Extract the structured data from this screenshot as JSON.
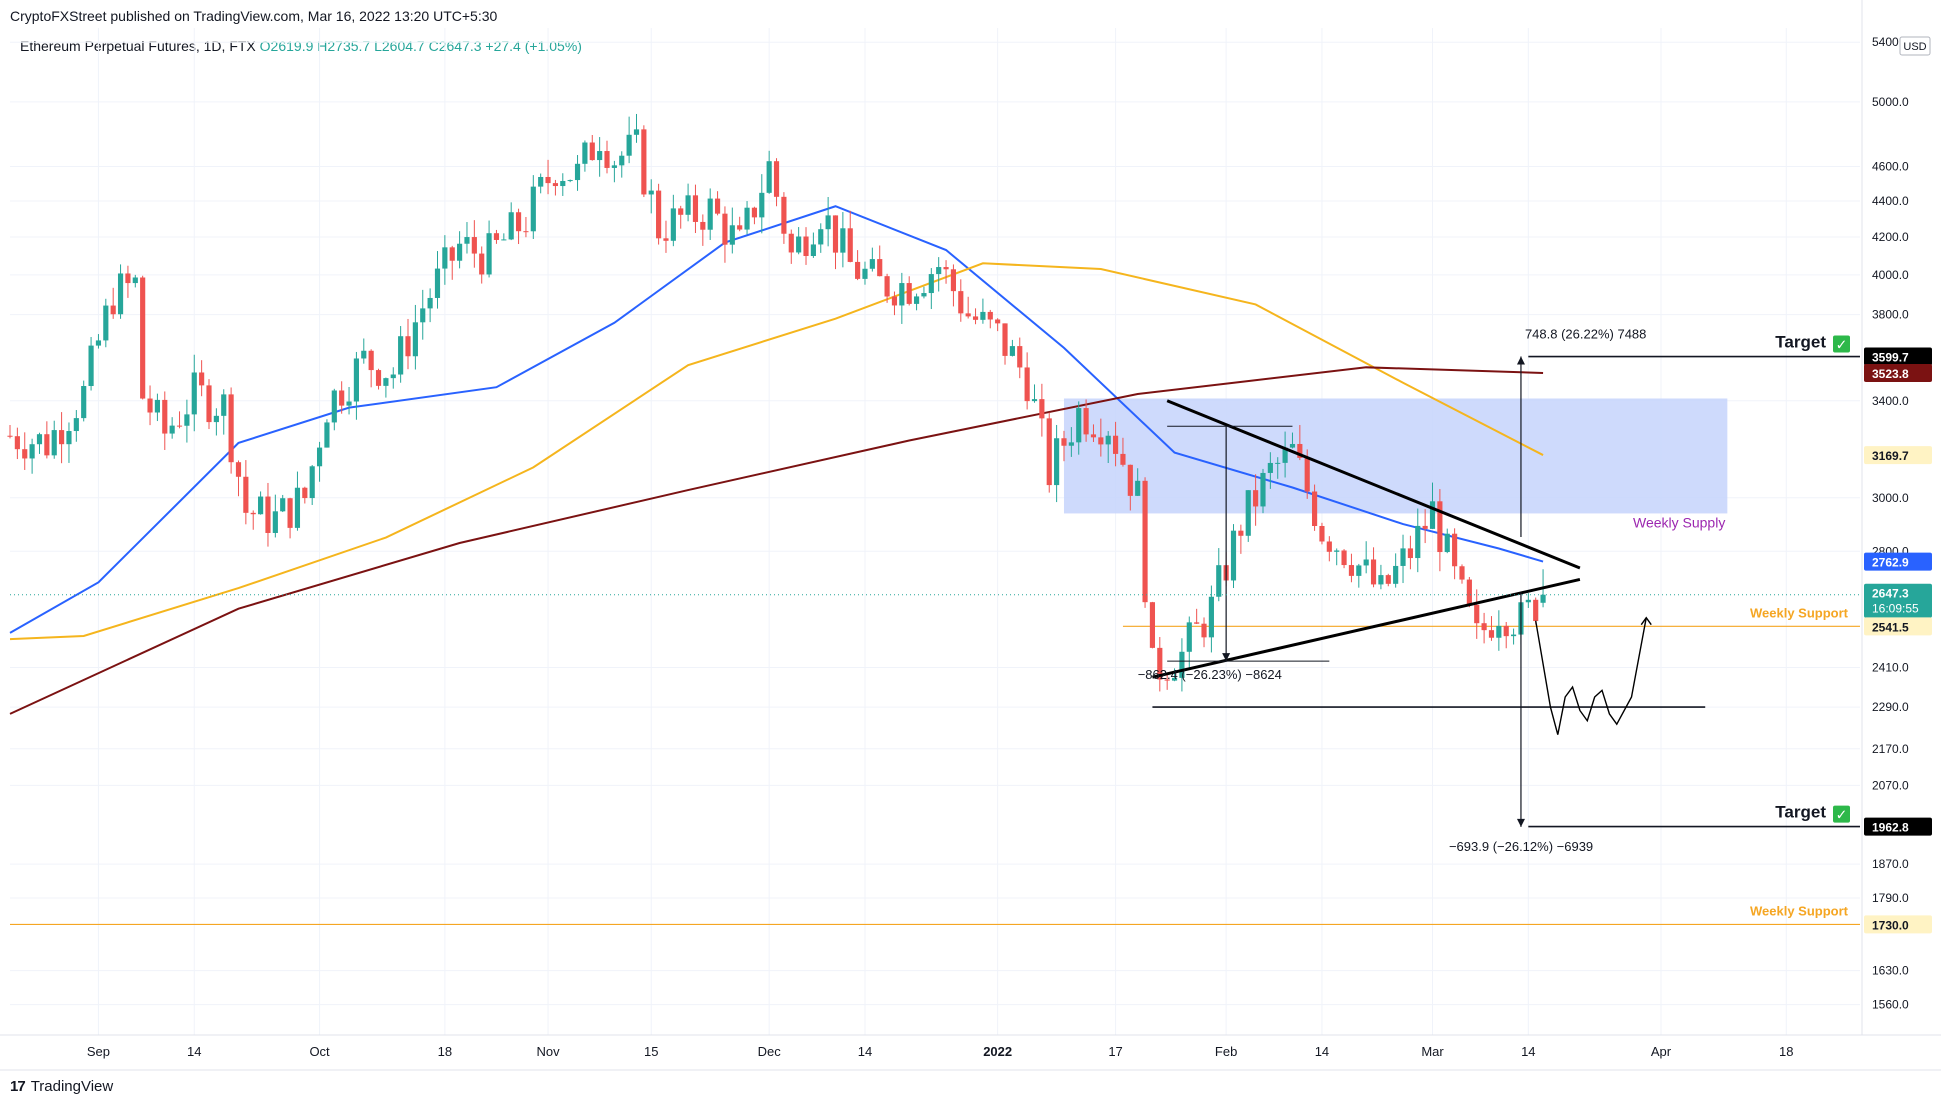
{
  "header": {
    "publish_line": "CryptoFXStreet published on TradingView.com, Mar 16, 2022 13:20 UTC+5:30",
    "symbol": "Ethereum Perpetual Futures, 1D, FTX",
    "ohlc_open": "O2619.9",
    "ohlc_high": "H2735.7",
    "ohlc_low": "L2604.7",
    "ohlc_close": "C2647.3",
    "ohlc_change": "+27.4 (+1.05%)"
  },
  "footer": {
    "brand": "TradingView",
    "logo_glyph": "17"
  },
  "colors": {
    "up": "#26a69a",
    "down": "#ef5350",
    "ma50": "#2962ff",
    "ma100": "#f5b51d",
    "ma200": "#7b1212",
    "supply_zone": "#c6d3fb",
    "support": "#f5a623",
    "annotation": "#131722"
  },
  "chart_data": {
    "type": "candlestick",
    "title": "Ethereum Perpetual Futures, 1D, FTX",
    "y_axis": {
      "scale": "log",
      "currency": "USD",
      "ticks": [
        5400,
        5000,
        4600,
        4400,
        4200,
        4000,
        3800,
        3400,
        3000,
        2800,
        2410,
        2290,
        2170,
        2070,
        1870,
        1790,
        1630,
        1560
      ]
    },
    "x_axis": {
      "ticks": [
        "Sep",
        "14",
        "Oct",
        "18",
        "Nov",
        "15",
        "Dec",
        "14",
        "2022",
        "17",
        "Feb",
        "14",
        "Mar",
        "14",
        "Apr",
        "18"
      ],
      "tick_dates": [
        "2021-09-01",
        "2021-09-14",
        "2021-10-01",
        "2021-10-18",
        "2021-11-01",
        "2021-11-15",
        "2021-12-01",
        "2021-12-14",
        "2022-01-01",
        "2022-01-17",
        "2022-02-01",
        "2022-02-14",
        "2022-03-01",
        "2022-03-14",
        "2022-04-01",
        "2022-04-18"
      ]
    },
    "x_range": [
      "2021-08-20",
      "2022-04-28"
    ],
    "y_range": [
      1500,
      5500
    ],
    "candle_closes": {
      "dates": [
        "2021-08-20",
        "2021-08-25",
        "2021-08-30",
        "2021-09-03",
        "2021-09-06",
        "2021-09-07",
        "2021-09-10",
        "2021-09-14",
        "2021-09-18",
        "2021-09-21",
        "2021-09-25",
        "2021-09-29",
        "2021-10-02",
        "2021-10-07",
        "2021-10-11",
        "2021-10-15",
        "2021-10-20",
        "2021-10-24",
        "2021-10-29",
        "2021-11-02",
        "2021-11-05",
        "2021-11-08",
        "2021-11-10",
        "2021-11-13",
        "2021-11-16",
        "2021-11-19",
        "2021-11-23",
        "2021-11-27",
        "2021-12-01",
        "2021-12-04",
        "2021-12-08",
        "2021-12-12",
        "2021-12-16",
        "2021-12-20",
        "2021-12-24",
        "2021-12-28",
        "2022-01-01",
        "2022-01-05",
        "2022-01-08",
        "2022-01-12",
        "2022-01-16",
        "2022-01-20",
        "2022-01-22",
        "2022-01-26",
        "2022-01-30",
        "2022-02-03",
        "2022-02-07",
        "2022-02-10",
        "2022-02-14",
        "2022-02-18",
        "2022-02-22",
        "2022-02-26",
        "2022-03-01",
        "2022-03-04",
        "2022-03-07",
        "2022-03-10",
        "2022-03-13",
        "2022-03-16"
      ],
      "close": [
        3250,
        3220,
        3430,
        3900,
        3950,
        3420,
        3260,
        3430,
        3380,
        2950,
        2920,
        3000,
        3380,
        3580,
        3530,
        3840,
        4150,
        4100,
        4300,
        4600,
        4550,
        4800,
        4650,
        4700,
        4250,
        4300,
        4350,
        4150,
        4600,
        4100,
        4350,
        4050,
        3950,
        3950,
        4050,
        3800,
        3700,
        3500,
        3100,
        3350,
        3300,
        3000,
        2400,
        2450,
        2600,
        2900,
        3100,
        3180,
        2880,
        2780,
        2650,
        2800,
        2950,
        2700,
        2500,
        2600,
        2560,
        2647
      ]
    },
    "series": [
      {
        "name": "50-day MA",
        "dates": [
          "2021-08-20",
          "2021-09-01",
          "2021-09-20",
          "2021-10-05",
          "2021-10-25",
          "2021-11-10",
          "2021-11-25",
          "2021-12-10",
          "2021-12-25",
          "2022-01-10",
          "2022-01-25",
          "2022-02-10",
          "2022-02-25",
          "2022-03-10",
          "2022-03-16"
        ],
        "values": [
          2520,
          2690,
          3220,
          3370,
          3460,
          3760,
          4170,
          4370,
          4130,
          3640,
          3180,
          3040,
          2900,
          2810,
          2763
        ]
      },
      {
        "name": "100-day MA",
        "dates": [
          "2021-08-20",
          "2021-08-30",
          "2021-09-20",
          "2021-10-10",
          "2021-10-30",
          "2021-11-20",
          "2021-12-10",
          "2021-12-30",
          "2022-01-15",
          "2022-02-05",
          "2022-02-25",
          "2022-03-16"
        ],
        "values": [
          2500,
          2510,
          2670,
          2850,
          3120,
          3560,
          3780,
          4060,
          4030,
          3850,
          3480,
          3170
        ]
      },
      {
        "name": "200-day MA",
        "dates": [
          "2021-08-20",
          "2021-09-20",
          "2021-10-20",
          "2021-11-20",
          "2021-12-20",
          "2022-01-20",
          "2022-02-20",
          "2022-03-16"
        ],
        "values": [
          2270,
          2600,
          2830,
          3030,
          3230,
          3430,
          3550,
          3524
        ]
      }
    ],
    "price_labels": [
      {
        "value": "3599.7",
        "kind": "target"
      },
      {
        "value": "3523.8",
        "kind": "ma200"
      },
      {
        "value": "3169.7",
        "kind": "ma100"
      },
      {
        "value": "2762.9",
        "kind": "ma50"
      },
      {
        "value": "2647.3",
        "kind": "last",
        "countdown": "16:09:55"
      },
      {
        "value": "2541.5",
        "kind": "weekly-support"
      },
      {
        "value": "1962.8",
        "kind": "target"
      },
      {
        "value": "1730.0",
        "kind": "weekly-support"
      }
    ],
    "levels": [
      {
        "label": "Target",
        "value": 3599.7
      },
      {
        "label": "Weekly Support",
        "value": 2541.5
      },
      {
        "label": "",
        "value": 2290
      },
      {
        "label": "Target",
        "value": 1962.8
      },
      {
        "label": "Weekly Support",
        "value": 1730.0
      }
    ],
    "zones": [
      {
        "label": "Weekly Supply",
        "from_date": "2022-01-10",
        "to_date": "2022-04-10",
        "low": 2940,
        "high": 3410
      }
    ],
    "trendlines": [
      {
        "from": [
          "2022-01-22",
          2380
        ],
        "to": [
          "2022-03-21",
          2700
        ]
      },
      {
        "from": [
          "2022-01-24",
          3400
        ],
        "to": [
          "2022-03-21",
          2740
        ]
      }
    ],
    "measurements": [
      {
        "text": "748.8 (26.22%) 7488",
        "from_value": 2852,
        "to_value": 3600
      },
      {
        "text": "−862.4 (−26.23%) −8624",
        "from_value": 3290,
        "to_value": 2430
      },
      {
        "text": "−693.9 (−26.12%) −6939",
        "from_value": 2655,
        "to_value": 1962
      }
    ],
    "target_check_glyph": "✓",
    "currency_label": "USD"
  }
}
